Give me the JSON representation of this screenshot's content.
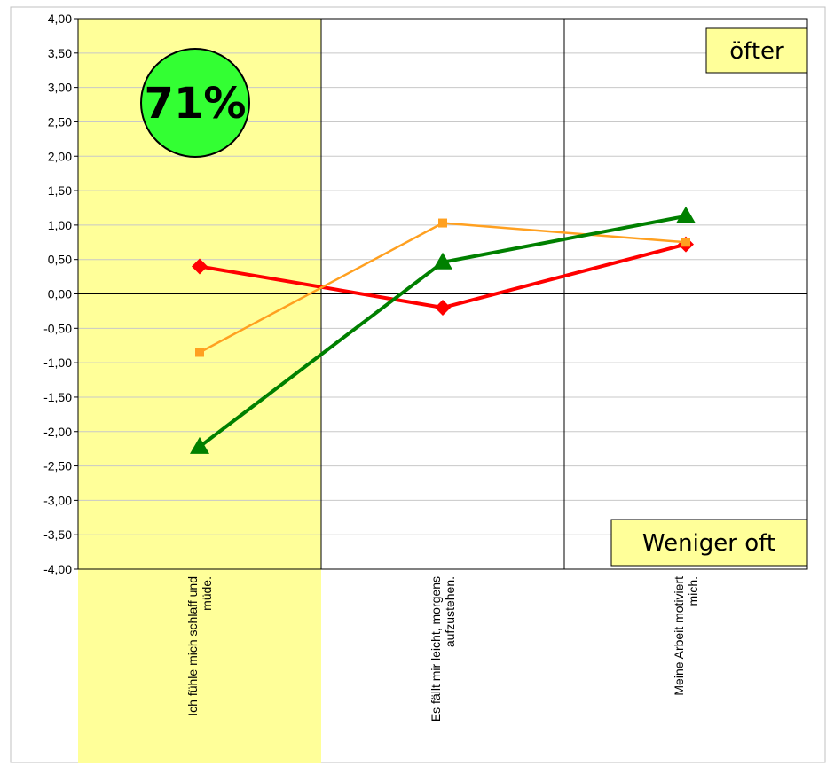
{
  "chart_data": {
    "type": "line",
    "categories": [
      [
        "Ich fühle mich schlaff und",
        "müde."
      ],
      [
        "Es fällt mir leicht, morgens",
        "aufzustehen."
      ],
      [
        "Meine Arbeit motiviert",
        "mich."
      ]
    ],
    "series": [
      {
        "color": "#ff0000",
        "marker": "diamond",
        "values": [
          0.4,
          -0.2,
          0.72
        ]
      },
      {
        "color": "#ffa020",
        "marker": "square",
        "values": [
          -0.85,
          1.03,
          0.75
        ]
      },
      {
        "color": "#008000",
        "marker": "triangle",
        "values": [
          -2.22,
          0.46,
          1.13
        ]
      }
    ],
    "ylim": [
      -4,
      4
    ],
    "y_step": 0.5,
    "y_decimal_separator": ",",
    "highlight_category_index": 0,
    "highlight_color": "#ffff99",
    "annotations": {
      "percent_badge": {
        "text": "71%",
        "color": "#33ff33"
      },
      "top_box": {
        "text": "öfter",
        "color": "#ffff99"
      },
      "bottom_box": {
        "text": "Weniger oft",
        "color": "#ffff99"
      }
    },
    "grid": true
  }
}
